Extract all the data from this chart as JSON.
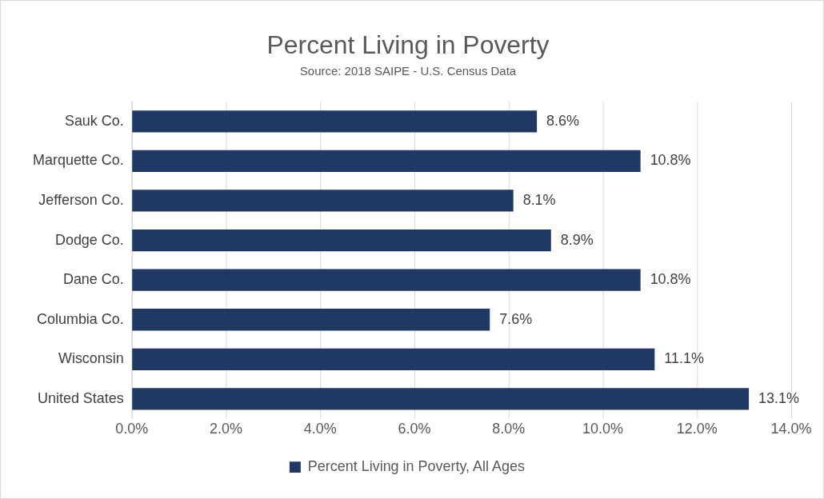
{
  "chart_data": {
    "type": "bar",
    "orientation": "horizontal",
    "title": "Percent Living in Poverty",
    "subtitle": "Source: 2018 SAIPE - U.S. Census Data",
    "categories": [
      "Sauk Co.",
      "Marquette Co.",
      "Jefferson Co.",
      "Dodge Co.",
      "Dane Co.",
      "Columbia Co.",
      "Wisconsin",
      "United States"
    ],
    "series": [
      {
        "name": "Percent Living in Poverty, All Ages",
        "color": "#1f3864",
        "values": [
          8.6,
          10.8,
          8.1,
          8.9,
          10.8,
          7.6,
          11.1,
          13.1
        ],
        "value_labels": [
          "8.6%",
          "10.8%",
          "8.1%",
          "8.9%",
          "10.8%",
          "7.6%",
          "11.1%",
          "13.1%"
        ]
      }
    ],
    "xlim": [
      0,
      14
    ],
    "xticks": [
      {
        "value": 0,
        "label": "0.0%"
      },
      {
        "value": 2,
        "label": "2.0%"
      },
      {
        "value": 4,
        "label": "4.0%"
      },
      {
        "value": 6,
        "label": "6.0%"
      },
      {
        "value": 8,
        "label": "8.0%"
      },
      {
        "value": 10,
        "label": "10.0%"
      },
      {
        "value": 12,
        "label": "12.0%"
      },
      {
        "value": 14,
        "label": "14.0%"
      }
    ],
    "grid": "x",
    "legend": "bottom"
  }
}
